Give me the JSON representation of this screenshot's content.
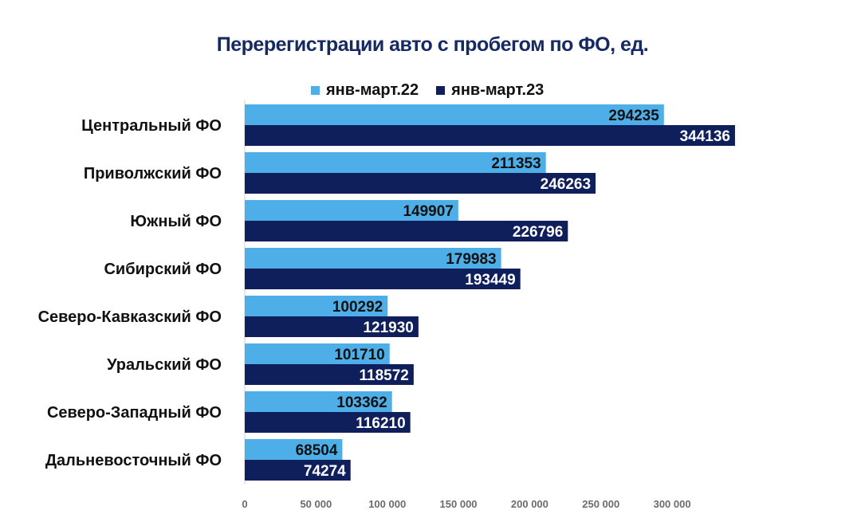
{
  "chart_data": {
    "type": "bar",
    "orientation": "horizontal",
    "title": "Перерегистрации авто с пробегом по ФО, ед.",
    "categories": [
      "Центральный ФО",
      "Приволжский ФО",
      "Южный ФО",
      "Сибирский ФО",
      "Северо-Кавказский ФО",
      "Уральский ФО",
      "Северо-Западный ФО",
      "Дальневосточный ФО"
    ],
    "series": [
      {
        "name": "янв-март.22",
        "color": "#4eaee8",
        "label_color": "#111111",
        "values": [
          294235,
          211353,
          149907,
          179983,
          100292,
          101710,
          103362,
          68504
        ]
      },
      {
        "name": "янв-март.23",
        "color": "#0e1f5b",
        "label_color": "#ffffff",
        "values": [
          344136,
          246263,
          226796,
          193449,
          121930,
          118572,
          116210,
          74274
        ]
      }
    ],
    "x_ticks": [
      0,
      50000,
      100000,
      150000,
      200000,
      250000,
      300000
    ],
    "x_tick_labels": [
      "0",
      "50 000",
      "100 000",
      "150 000",
      "200 000",
      "250 000",
      "300 000"
    ],
    "xlim": [
      0,
      350000
    ],
    "legend_position": "top",
    "grid": false
  }
}
